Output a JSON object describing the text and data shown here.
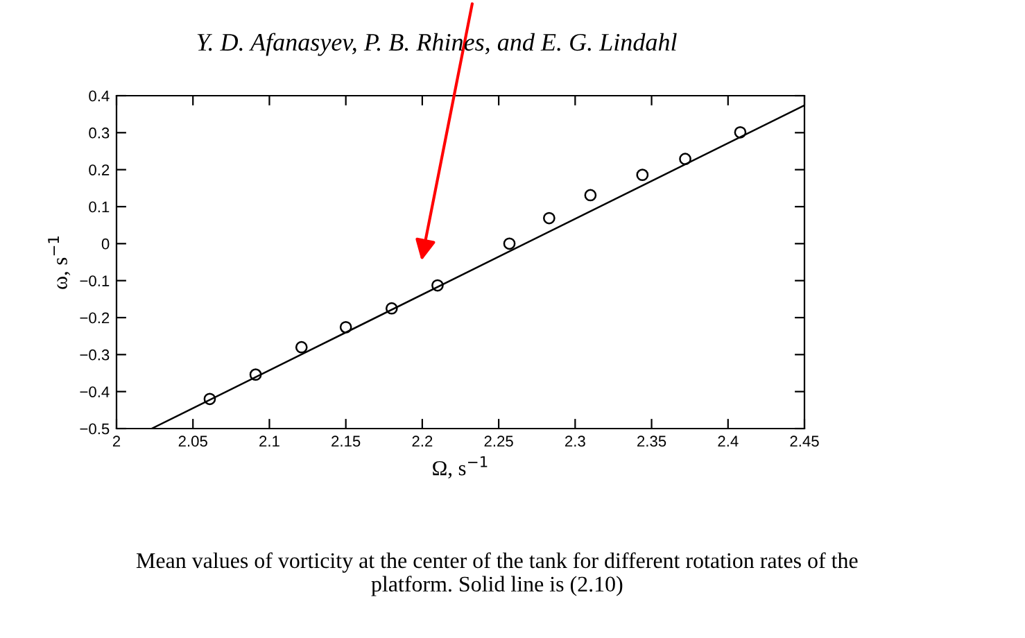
{
  "chart_data": {
    "type": "scatter",
    "title": "Y. D. Afanasyev, P. B. Rhines, and E. G. Lindahl",
    "xlabel": "Ω, s$^{−1}$",
    "ylabel": "ω, s$^{−1}$",
    "x": [
      2.061,
      2.091,
      2.121,
      2.15,
      2.18,
      2.21,
      2.257,
      2.283,
      2.31,
      2.344,
      2.372,
      2.408
    ],
    "series": [
      {
        "color": "#000000",
        "marker": "circle",
        "values": [
          -0.42,
          -0.354,
          -0.28,
          -0.226,
          -0.175,
          -0.113,
          0.0,
          0.069,
          0.131,
          0.186,
          0.229,
          0.301
        ]
      },
      {
        "type": "line",
        "color": "#000000",
        "marker": "none",
        "x": [
          2.023,
          2.45
        ],
        "values": [
          -0.5,
          0.374
        ]
      }
    ],
    "xlim": [
      2,
      2.45
    ],
    "xticks": [
      2,
      2.05,
      2.1,
      2.15,
      2.2,
      2.25,
      2.3,
      2.35,
      2.4,
      2.45
    ],
    "ylim": [
      -0.5,
      0.4
    ],
    "yticks": [
      -0.5,
      -0.4,
      -0.3,
      -0.2,
      -0.1,
      0,
      0.1,
      0.2,
      0.3,
      0.4
    ],
    "grid": false,
    "legend": false,
    "annotations": [
      "Mean values of vorticity at the center of the tank for different rotation rates of the\nplatform. Solid line is (2.10)"
    ]
  }
}
